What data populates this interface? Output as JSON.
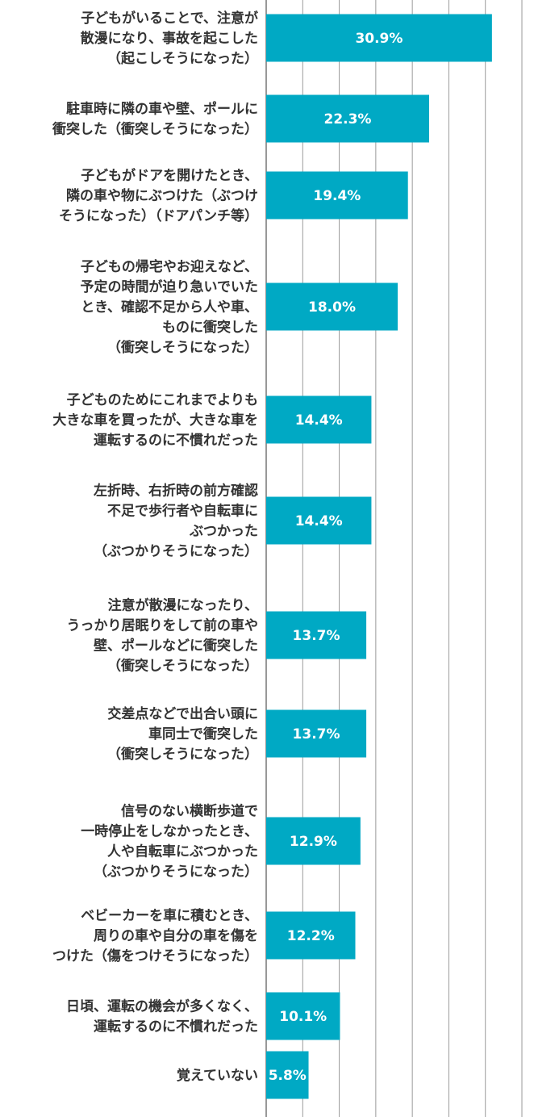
{
  "chart_data": {
    "type": "bar",
    "orientation": "horizontal",
    "grid": true,
    "xlim": [
      0,
      35
    ],
    "bar_color": "#00a9c4",
    "categories": [
      [
        "子どもがいることで、注意が",
        "散漫になり、事故を起こした",
        "（起こしそうになった）"
      ],
      [
        "駐車時に隣の車や壁、ポールに",
        "衝突した（衝突しそうになった）"
      ],
      [
        "子どもがドアを開けたとき、",
        "隣の車や物にぶつけた（ぶつけ",
        "そうになった）（ドアパンチ等）"
      ],
      [
        "子どもの帰宅やお迎えなど、",
        "予定の時間が迫り急いでいた",
        "とき、確認不足から人や車、",
        "ものに衝突した",
        "（衝突しそうになった）"
      ],
      [
        "子どものためにこれまでよりも",
        "大きな車を買ったが、大きな車を",
        "運転するのに不慣れだった"
      ],
      [
        "左折時、右折時の前方確認",
        "不足で歩行者や自転車に",
        "ぶつかった",
        "（ぶつかりそうになった）"
      ],
      [
        "注意が散漫になったり、",
        "うっかり居眠りをして前の車や",
        "壁、ポールなどに衝突した",
        "（衝突しそうになった）"
      ],
      [
        "交差点などで出合い頭に",
        "車同士で衝突した",
        "（衝突しそうになった）"
      ],
      [
        "信号のない横断歩道で",
        "一時停止をしなかったとき、",
        "人や自転車にぶつかった",
        "（ぶつかりそうになった）"
      ],
      [
        "ベビーカーを車に積むとき、",
        "周りの車や自分の車を傷を",
        "つけた（傷をつけそうになった）"
      ],
      [
        "日頃、運転の機会が多くなく、",
        "運転するのに不慣れだった"
      ],
      [
        "覚えていない"
      ]
    ],
    "values": [
      30.9,
      22.3,
      19.4,
      18.0,
      14.4,
      14.4,
      13.7,
      13.7,
      12.9,
      12.2,
      10.1,
      5.8
    ],
    "value_labels": [
      "30.9%",
      "22.3%",
      "19.4%",
      "18.0%",
      "14.4%",
      "14.4%",
      "13.7%",
      "13.7%",
      "12.9%",
      "12.2%",
      "10.1%",
      "5.8%"
    ]
  }
}
